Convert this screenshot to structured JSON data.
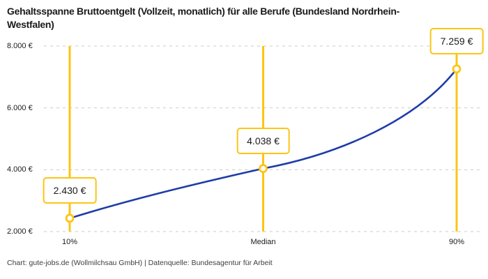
{
  "header": {
    "title": "Gehaltsspanne Bruttoentgelt (Vollzeit, monatlich) für alle Berufe (Bundesland Nordrhein-Westfalen)"
  },
  "footer": {
    "text": "Chart: gute-jobs.de (Wollmilchsau GmbH) | Datenquelle: Bundesagentur für Arbeit"
  },
  "chart_data": {
    "type": "line",
    "title": "Gehaltsspanne Bruttoentgelt (Vollzeit, monatlich) für alle Berufe (Bundesland Nordrhein-Westfalen)",
    "categories": [
      "10%",
      "Median",
      "90%"
    ],
    "values": [
      2430,
      4038,
      7259
    ],
    "value_labels": [
      "2.430 €",
      "4.038 €",
      "7.259 €"
    ],
    "unit": "€",
    "ylim": [
      2000,
      8000
    ],
    "yticks": [
      2000,
      4000,
      6000,
      8000
    ],
    "ytick_labels": [
      "2.000 €",
      "4.000 €",
      "6.000 €",
      "8.000 €"
    ],
    "grid": "horizontal-dashed",
    "legend": "none",
    "annotations": "vertical accent line with circular marker and framed value label at each percentile",
    "colors": {
      "accent": "#fdc413",
      "line": "#1e3da8",
      "grid": "#cbcbcb",
      "text": "#1a1a1a",
      "background": "#ffffff"
    }
  }
}
